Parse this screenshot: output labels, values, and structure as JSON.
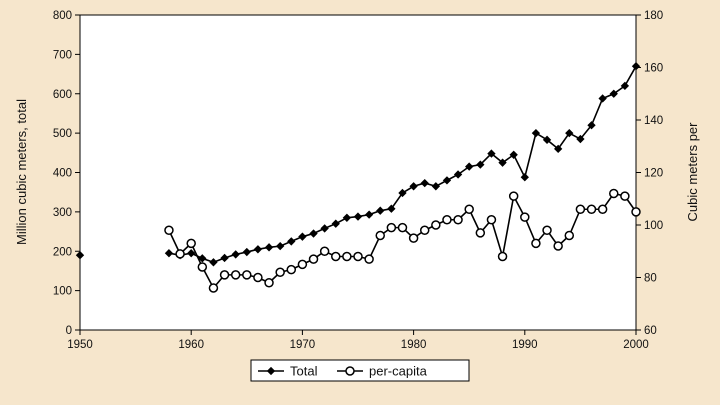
{
  "chart_data": {
    "type": "line",
    "ylabel_left": "Million cubic meters, total",
    "ylabel_right": "Cubic meters per",
    "xlim": [
      1950,
      2000
    ],
    "x_ticks": [
      "1950",
      "1960",
      "1970",
      "1980",
      "1990",
      "2000"
    ],
    "ylim_left": [
      0,
      800
    ],
    "y_left_ticks": [
      "0",
      "100",
      "200",
      "300",
      "400",
      "500",
      "600",
      "700",
      "800"
    ],
    "ylim_right": [
      60,
      180
    ],
    "y_right_ticks": [
      "60",
      "80",
      "100",
      "120",
      "140",
      "160",
      "180"
    ],
    "grid": false,
    "legend_position": "bottom-center",
    "colors": {
      "background": "#f6e6cc",
      "plot_background": "#ffffff",
      "line": "#000000"
    },
    "series": [
      {
        "name": "Total",
        "axis": "left",
        "marker": "filled-diamond",
        "x": [
          1950,
          1958,
          1959,
          1960,
          1961,
          1962,
          1963,
          1964,
          1965,
          1966,
          1967,
          1968,
          1969,
          1970,
          1971,
          1972,
          1973,
          1974,
          1975,
          1976,
          1977,
          1978,
          1979,
          1980,
          1981,
          1982,
          1983,
          1984,
          1985,
          1986,
          1987,
          1988,
          1989,
          1990,
          1991,
          1992,
          1993,
          1994,
          1995,
          1996,
          1997,
          1998,
          1999,
          2000
        ],
        "values": [
          190,
          195,
          190,
          195,
          182,
          172,
          183,
          192,
          198,
          205,
          210,
          213,
          225,
          237,
          245,
          258,
          270,
          285,
          288,
          293,
          303,
          308,
          348,
          365,
          373,
          365,
          380,
          395,
          415,
          420,
          448,
          425,
          445,
          388,
          500,
          483,
          460,
          500,
          485,
          520,
          588,
          600,
          620,
          670
        ]
      },
      {
        "name": "per-capita",
        "axis": "right",
        "marker": "open-circle",
        "x": [
          1958,
          1959,
          1960,
          1961,
          1962,
          1963,
          1964,
          1965,
          1966,
          1967,
          1968,
          1969,
          1970,
          1971,
          1972,
          1973,
          1974,
          1975,
          1976,
          1977,
          1978,
          1979,
          1980,
          1981,
          1982,
          1983,
          1984,
          1985,
          1986,
          1987,
          1988,
          1989,
          1990,
          1991,
          1992,
          1993,
          1994,
          1995,
          1996,
          1997,
          1998,
          1999,
          2000
        ],
        "values": [
          98,
          89,
          93,
          84,
          76,
          81,
          81,
          81,
          80,
          78,
          82,
          83,
          85,
          87,
          90,
          88,
          88,
          88,
          87,
          96,
          99,
          99,
          95,
          98,
          100,
          102,
          102,
          106,
          97,
          102,
          88,
          111,
          103,
          93,
          98,
          92,
          96,
          106,
          106,
          106,
          112,
          111,
          105
        ]
      }
    ]
  }
}
